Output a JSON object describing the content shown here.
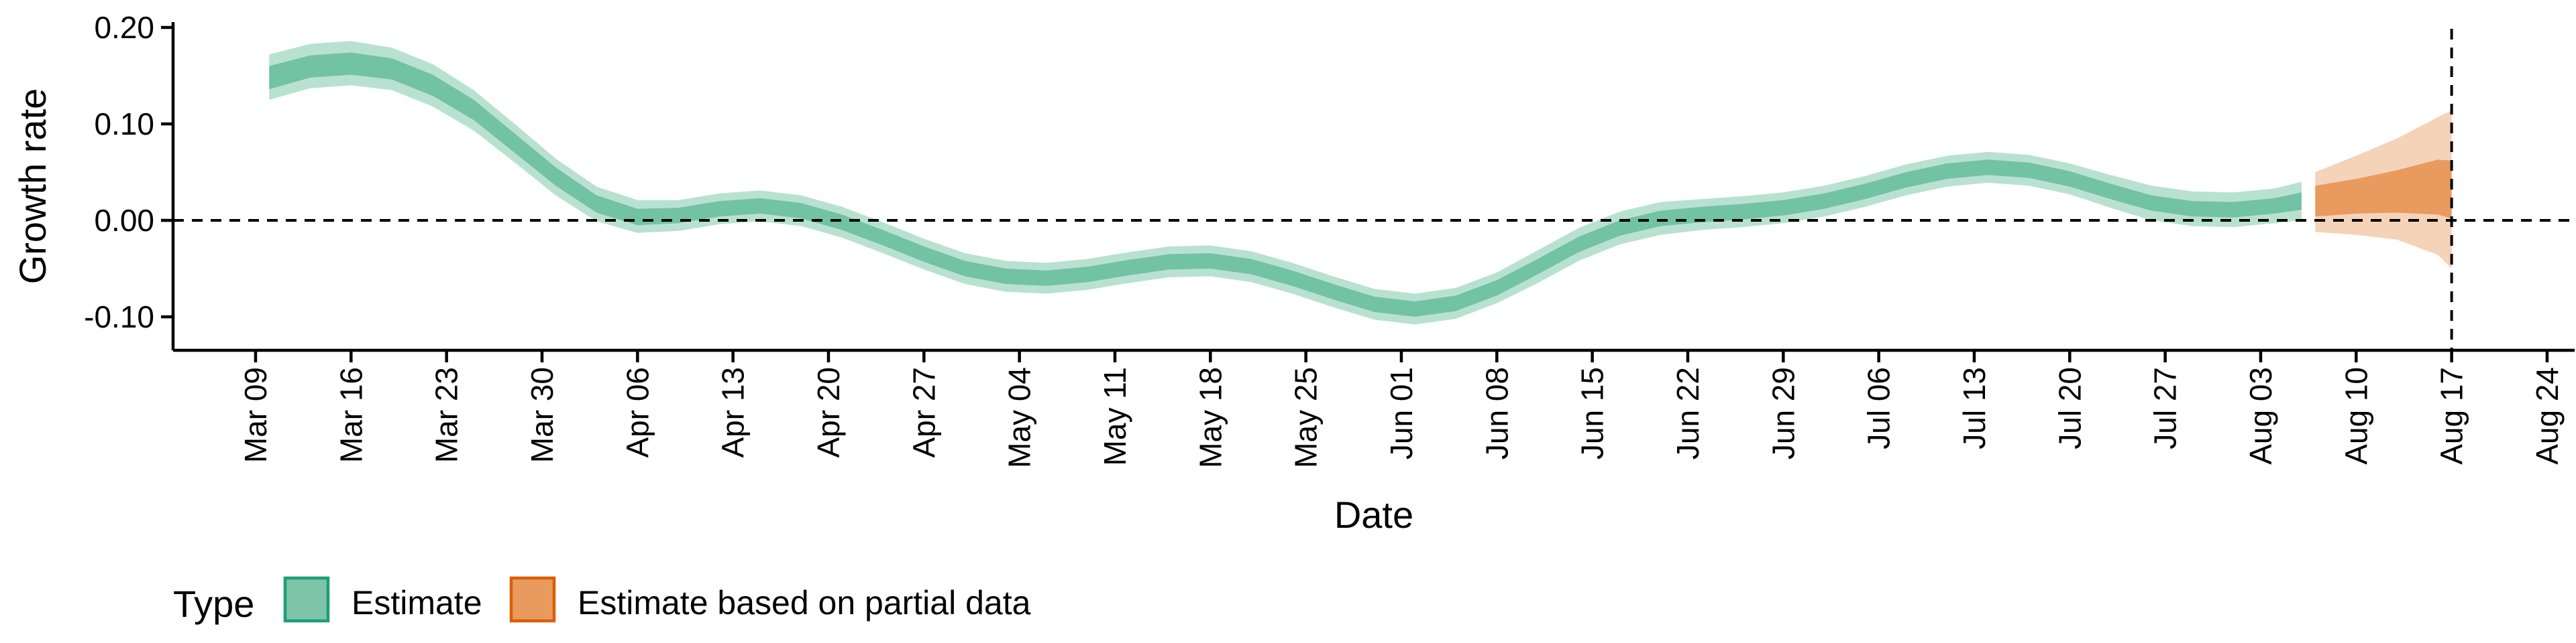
{
  "chart_data": {
    "type": "area",
    "xlabel": "Date",
    "ylabel": "Growth rate",
    "ylim": [
      -0.135,
      0.205
    ],
    "y_ticks": [
      -0.1,
      0.0,
      0.1,
      0.2
    ],
    "y_tick_labels": [
      "-0.10",
      "0.00",
      "0.10",
      "0.20"
    ],
    "x_range": [
      "2020-03-02",
      "2020-08-25"
    ],
    "x_ticks": [
      "2020-03-09",
      "2020-03-16",
      "2020-03-23",
      "2020-03-30",
      "2020-04-06",
      "2020-04-13",
      "2020-04-20",
      "2020-04-27",
      "2020-05-04",
      "2020-05-11",
      "2020-05-18",
      "2020-05-25",
      "2020-06-01",
      "2020-06-08",
      "2020-06-15",
      "2020-06-22",
      "2020-06-29",
      "2020-07-06",
      "2020-07-13",
      "2020-07-20",
      "2020-07-27",
      "2020-08-03",
      "2020-08-10",
      "2020-08-17",
      "2020-08-24"
    ],
    "x_tick_labels": [
      "Mar 09",
      "Mar 16",
      "Mar 23",
      "Mar 30",
      "Apr 06",
      "Apr 13",
      "Apr 20",
      "Apr 27",
      "May 04",
      "May 11",
      "May 18",
      "May 25",
      "Jun 01",
      "Jun 08",
      "Jun 15",
      "Jun 22",
      "Jun 29",
      "Jul 06",
      "Jul 13",
      "Jul 20",
      "Jul 27",
      "Aug 03",
      "Aug 10",
      "Aug 17",
      "Aug 24"
    ],
    "reference_lines": {
      "horizontal_y": 0.0,
      "vertical_x": "2020-08-17"
    },
    "grid": false,
    "legend": {
      "title": "Type",
      "placement": "bottom-left",
      "entries": [
        {
          "label": "Estimate",
          "fill": "#7dc4a8",
          "stroke": "#1b9e77"
        },
        {
          "label": "Estimate based on partial data",
          "fill": "#e99a5e",
          "stroke": "#d95f02"
        }
      ]
    },
    "series": [
      {
        "name": "Estimate",
        "color_inner": "#72c2a6",
        "color_outer": "#b9e1d2",
        "points": [
          {
            "x": "2020-03-10",
            "y": 0.148,
            "lo50": 0.136,
            "hi50": 0.16,
            "lo90": 0.125,
            "hi90": 0.172
          },
          {
            "x": "2020-03-13",
            "y": 0.16,
            "lo50": 0.148,
            "hi50": 0.171,
            "lo90": 0.137,
            "hi90": 0.183
          },
          {
            "x": "2020-03-16",
            "y": 0.163,
            "lo50": 0.151,
            "hi50": 0.174,
            "lo90": 0.14,
            "hi90": 0.186
          },
          {
            "x": "2020-03-19",
            "y": 0.157,
            "lo50": 0.146,
            "hi50": 0.168,
            "lo90": 0.135,
            "hi90": 0.179
          },
          {
            "x": "2020-03-22",
            "y": 0.14,
            "lo50": 0.129,
            "hi50": 0.151,
            "lo90": 0.118,
            "hi90": 0.162
          },
          {
            "x": "2020-03-25",
            "y": 0.114,
            "lo50": 0.104,
            "hi50": 0.125,
            "lo90": 0.093,
            "hi90": 0.135
          },
          {
            "x": "2020-03-28",
            "y": 0.08,
            "lo50": 0.07,
            "hi50": 0.09,
            "lo90": 0.06,
            "hi90": 0.1
          },
          {
            "x": "2020-03-31",
            "y": 0.045,
            "lo50": 0.036,
            "hi50": 0.055,
            "lo90": 0.026,
            "hi90": 0.064
          },
          {
            "x": "2020-04-03",
            "y": 0.017,
            "lo50": 0.008,
            "hi50": 0.026,
            "lo90": -0.001,
            "hi90": 0.035
          },
          {
            "x": "2020-04-06",
            "y": 0.004,
            "lo50": -0.005,
            "hi50": 0.012,
            "lo90": -0.013,
            "hi90": 0.021
          },
          {
            "x": "2020-04-09",
            "y": 0.005,
            "lo50": -0.003,
            "hi50": 0.013,
            "lo90": -0.011,
            "hi90": 0.021
          },
          {
            "x": "2020-04-12",
            "y": 0.012,
            "lo50": 0.004,
            "hi50": 0.02,
            "lo90": -0.004,
            "hi90": 0.028
          },
          {
            "x": "2020-04-15",
            "y": 0.015,
            "lo50": 0.007,
            "hi50": 0.023,
            "lo90": -0.001,
            "hi90": 0.031
          },
          {
            "x": "2020-04-18",
            "y": 0.01,
            "lo50": 0.002,
            "hi50": 0.018,
            "lo90": -0.006,
            "hi90": 0.026
          },
          {
            "x": "2020-04-21",
            "y": -0.002,
            "lo50": -0.01,
            "hi50": 0.006,
            "lo90": -0.018,
            "hi90": 0.014
          },
          {
            "x": "2020-04-24",
            "y": -0.018,
            "lo50": -0.026,
            "hi50": -0.01,
            "lo90": -0.034,
            "hi90": -0.002
          },
          {
            "x": "2020-04-27",
            "y": -0.035,
            "lo50": -0.043,
            "hi50": -0.027,
            "lo90": -0.051,
            "hi90": -0.019
          },
          {
            "x": "2020-04-30",
            "y": -0.05,
            "lo50": -0.058,
            "hi50": -0.042,
            "lo90": -0.066,
            "hi90": -0.034
          },
          {
            "x": "2020-05-03",
            "y": -0.058,
            "lo50": -0.066,
            "hi50": -0.05,
            "lo90": -0.074,
            "hi90": -0.042
          },
          {
            "x": "2020-05-06",
            "y": -0.06,
            "lo50": -0.068,
            "hi50": -0.052,
            "lo90": -0.076,
            "hi90": -0.044
          },
          {
            "x": "2020-05-09",
            "y": -0.056,
            "lo50": -0.064,
            "hi50": -0.048,
            "lo90": -0.072,
            "hi90": -0.04
          },
          {
            "x": "2020-05-12",
            "y": -0.049,
            "lo50": -0.057,
            "hi50": -0.041,
            "lo90": -0.065,
            "hi90": -0.033
          },
          {
            "x": "2020-05-15",
            "y": -0.043,
            "lo50": -0.051,
            "hi50": -0.035,
            "lo90": -0.059,
            "hi90": -0.027
          },
          {
            "x": "2020-05-18",
            "y": -0.042,
            "lo50": -0.05,
            "hi50": -0.034,
            "lo90": -0.058,
            "hi90": -0.026
          },
          {
            "x": "2020-05-21",
            "y": -0.048,
            "lo50": -0.056,
            "hi50": -0.04,
            "lo90": -0.064,
            "hi90": -0.032
          },
          {
            "x": "2020-05-24",
            "y": -0.06,
            "lo50": -0.068,
            "hi50": -0.052,
            "lo90": -0.076,
            "hi90": -0.044
          },
          {
            "x": "2020-05-27",
            "y": -0.074,
            "lo50": -0.082,
            "hi50": -0.066,
            "lo90": -0.09,
            "hi90": -0.058
          },
          {
            "x": "2020-05-30",
            "y": -0.087,
            "lo50": -0.095,
            "hi50": -0.079,
            "lo90": -0.103,
            "hi90": -0.071
          },
          {
            "x": "2020-06-02",
            "y": -0.092,
            "lo50": -0.1,
            "hi50": -0.084,
            "lo90": -0.108,
            "hi90": -0.076
          },
          {
            "x": "2020-06-05",
            "y": -0.086,
            "lo50": -0.094,
            "hi50": -0.078,
            "lo90": -0.102,
            "hi90": -0.07
          },
          {
            "x": "2020-06-08",
            "y": -0.07,
            "lo50": -0.078,
            "hi50": -0.062,
            "lo90": -0.086,
            "hi90": -0.054
          },
          {
            "x": "2020-06-11",
            "y": -0.048,
            "lo50": -0.056,
            "hi50": -0.04,
            "lo90": -0.065,
            "hi90": -0.031
          },
          {
            "x": "2020-06-14",
            "y": -0.025,
            "lo50": -0.033,
            "hi50": -0.017,
            "lo90": -0.042,
            "hi90": -0.008
          },
          {
            "x": "2020-06-17",
            "y": -0.008,
            "lo50": -0.016,
            "hi50": 0.0,
            "lo90": -0.025,
            "hi90": 0.009
          },
          {
            "x": "2020-06-20",
            "y": 0.002,
            "lo50": -0.006,
            "hi50": 0.01,
            "lo90": -0.015,
            "hi90": 0.019
          },
          {
            "x": "2020-06-23",
            "y": 0.006,
            "lo50": -0.002,
            "hi50": 0.014,
            "lo90": -0.01,
            "hi90": 0.022
          },
          {
            "x": "2020-06-26",
            "y": 0.009,
            "lo50": 0.001,
            "hi50": 0.017,
            "lo90": -0.007,
            "hi90": 0.025
          },
          {
            "x": "2020-06-29",
            "y": 0.013,
            "lo50": 0.005,
            "hi50": 0.021,
            "lo90": -0.003,
            "hi90": 0.029
          },
          {
            "x": "2020-07-02",
            "y": 0.02,
            "lo50": 0.012,
            "hi50": 0.028,
            "lo90": 0.004,
            "hi90": 0.036
          },
          {
            "x": "2020-07-05",
            "y": 0.03,
            "lo50": 0.022,
            "hi50": 0.038,
            "lo90": 0.014,
            "hi90": 0.046
          },
          {
            "x": "2020-07-08",
            "y": 0.042,
            "lo50": 0.034,
            "hi50": 0.05,
            "lo90": 0.026,
            "hi90": 0.058
          },
          {
            "x": "2020-07-11",
            "y": 0.051,
            "lo50": 0.043,
            "hi50": 0.059,
            "lo90": 0.035,
            "hi90": 0.067
          },
          {
            "x": "2020-07-14",
            "y": 0.055,
            "lo50": 0.047,
            "hi50": 0.063,
            "lo90": 0.039,
            "hi90": 0.071
          },
          {
            "x": "2020-07-17",
            "y": 0.052,
            "lo50": 0.044,
            "hi50": 0.06,
            "lo90": 0.036,
            "hi90": 0.068
          },
          {
            "x": "2020-07-20",
            "y": 0.043,
            "lo50": 0.035,
            "hi50": 0.051,
            "lo90": 0.027,
            "hi90": 0.059
          },
          {
            "x": "2020-07-23",
            "y": 0.03,
            "lo50": 0.022,
            "hi50": 0.038,
            "lo90": 0.013,
            "hi90": 0.047
          },
          {
            "x": "2020-07-26",
            "y": 0.018,
            "lo50": 0.01,
            "hi50": 0.026,
            "lo90": 0.0,
            "hi90": 0.036
          },
          {
            "x": "2020-07-29",
            "y": 0.012,
            "lo50": 0.004,
            "hi50": 0.02,
            "lo90": -0.006,
            "hi90": 0.03
          },
          {
            "x": "2020-08-01",
            "y": 0.011,
            "lo50": 0.003,
            "hi50": 0.019,
            "lo90": -0.007,
            "hi90": 0.029
          },
          {
            "x": "2020-08-04",
            "y": 0.015,
            "lo50": 0.007,
            "hi50": 0.023,
            "lo90": -0.003,
            "hi90": 0.033
          },
          {
            "x": "2020-08-06",
            "y": 0.02,
            "lo50": 0.011,
            "hi50": 0.029,
            "lo90": 0.0,
            "hi90": 0.04
          }
        ]
      },
      {
        "name": "Estimate based on partial data",
        "color_inner": "#e99a5e",
        "color_outer": "#f5d3b8",
        "points": [
          {
            "x": "2020-08-07",
            "y": 0.02,
            "lo50": 0.004,
            "hi50": 0.036,
            "lo90": -0.012,
            "hi90": 0.05
          },
          {
            "x": "2020-08-10",
            "y": 0.025,
            "lo50": 0.007,
            "hi50": 0.043,
            "lo90": -0.015,
            "hi90": 0.067
          },
          {
            "x": "2020-08-13",
            "y": 0.03,
            "lo50": 0.008,
            "hi50": 0.052,
            "lo90": -0.02,
            "hi90": 0.085
          },
          {
            "x": "2020-08-16",
            "y": 0.034,
            "lo50": 0.006,
            "hi50": 0.063,
            "lo90": -0.036,
            "hi90": 0.107
          },
          {
            "x": "2020-08-17",
            "y": 0.032,
            "lo50": 0.002,
            "hi50": 0.062,
            "lo90": -0.05,
            "hi90": 0.114
          }
        ]
      }
    ]
  }
}
